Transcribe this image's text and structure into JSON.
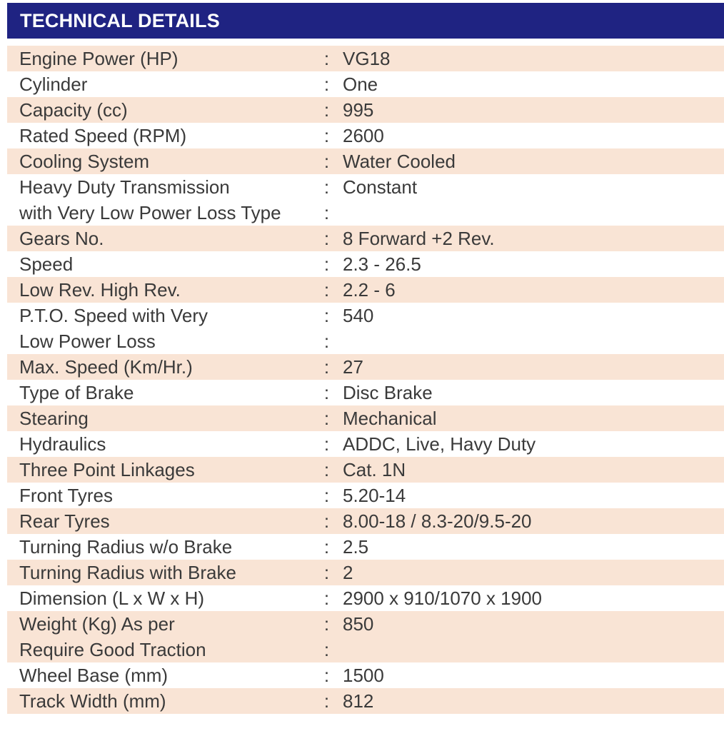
{
  "header": {
    "title": "TECHNICAL DETAILS"
  },
  "colors": {
    "header_bg": "#1f2382",
    "row_shade": "#f9e4d5",
    "row_plain": "#ffffff"
  },
  "rows": [
    {
      "label": "Engine Power (HP)",
      "colon": ":",
      "value": "VG18"
    },
    {
      "label": "Cylinder",
      "colon": ":",
      "value": "One"
    },
    {
      "label": "Capacity (cc)",
      "colon": ":",
      "value": "995"
    },
    {
      "label": "Rated Speed (RPM)",
      "colon": ":",
      "value": "2600"
    },
    {
      "label": "Cooling System",
      "colon": ":",
      "value": "Water Cooled"
    },
    {
      "label": "Heavy Duty Transmission",
      "colon": ":",
      "value": "Constant"
    },
    {
      "label": "with Very Low Power Loss Type",
      "colon": ":",
      "value": ""
    },
    {
      "label": "Gears No.",
      "colon": ":",
      "value": "8 Forward +2 Rev."
    },
    {
      "label": "Speed",
      "colon": ":",
      "value": "2.3 - 26.5"
    },
    {
      "label": "Low Rev. High Rev.",
      "colon": ":",
      "value": "2.2 - 6"
    },
    {
      "label": "P.T.O. Speed with Very",
      "colon": ":",
      "value": "540"
    },
    {
      "label": "Low Power Loss",
      "colon": ":",
      "value": ""
    },
    {
      "label": "Max. Speed (Km/Hr.)",
      "colon": ":",
      "value": "27"
    },
    {
      "label": "Type of Brake",
      "colon": ":",
      "value": "Disc Brake"
    },
    {
      "label": "Stearing",
      "colon": ":",
      "value": "Mechanical"
    },
    {
      "label": "Hydraulics",
      "colon": ":",
      "value": "ADDC, Live, Havy Duty"
    },
    {
      "label": "Three Point Linkages",
      "colon": ":",
      "value": "Cat. 1N"
    },
    {
      "label": "Front Tyres",
      "colon": ":",
      "value": "5.20-14"
    },
    {
      "label": "Rear Tyres",
      "colon": ":",
      "value": "8.00-18 / 8.3-20/9.5-20"
    },
    {
      "label": "Turning Radius w/o Brake",
      "colon": ":",
      "value": "2.5"
    },
    {
      "label": "Turning Radius with Brake",
      "colon": ":",
      "value": "2"
    },
    {
      "label": "Dimension (L x W x H)",
      "colon": ":",
      "value": "2900 x 910/1070 x 1900"
    },
    {
      "label": "Weight (Kg) As per",
      "colon": ":",
      "value": "850"
    },
    {
      "label": "Require Good Traction",
      "colon": ":",
      "value": ""
    },
    {
      "label": "Wheel Base (mm)",
      "colon": ":",
      "value": "1500"
    },
    {
      "label": "Track Width (mm)",
      "colon": ":",
      "value": "812"
    }
  ]
}
